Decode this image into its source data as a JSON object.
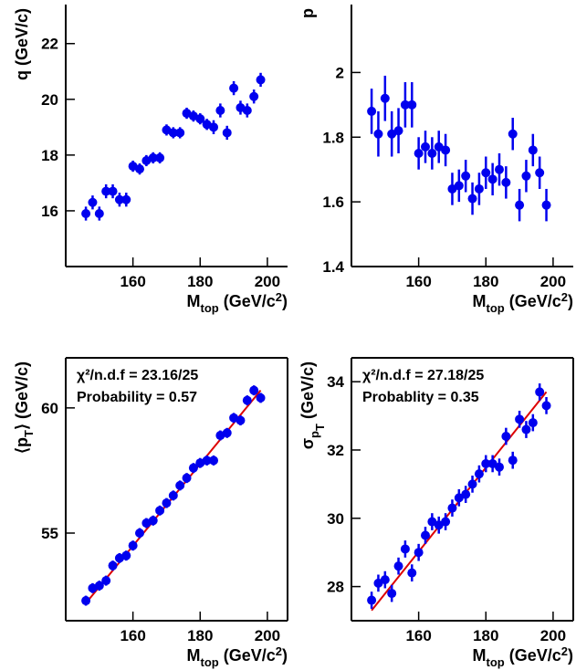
{
  "chart_data": [
    {
      "type": "scatter",
      "ylabel": [
        {
          "text": "q (GeV/c)"
        }
      ],
      "xlabel": [
        {
          "text": "M"
        },
        {
          "text": "top",
          "shift": "sub"
        },
        {
          "text": "  (GeV/c"
        },
        {
          "text": "2",
          "shift": "super"
        },
        {
          "text": ")"
        }
      ],
      "xlim": [
        140,
        206
      ],
      "xticks": [
        160,
        180,
        200
      ],
      "ylim": [
        14,
        23.4
      ],
      "yticks": [
        16,
        18,
        20,
        22
      ],
      "frame": false,
      "x": [
        146,
        148,
        150,
        152,
        154,
        156,
        158,
        160,
        162,
        164,
        166,
        168,
        170,
        172,
        174,
        176,
        178,
        180,
        182,
        184,
        186,
        188,
        190,
        192,
        194,
        196,
        198
      ],
      "series": [
        {
          "color": "#0000ee",
          "values": [
            15.9,
            16.3,
            15.9,
            16.7,
            16.7,
            16.4,
            16.4,
            17.6,
            17.5,
            17.8,
            17.9,
            17.9,
            18.9,
            18.8,
            18.8,
            19.5,
            19.4,
            19.3,
            19.1,
            19.0,
            19.6,
            18.8,
            20.4,
            19.7,
            19.6,
            20.1,
            20.7
          ],
          "errors": [
            0.25,
            0.25,
            0.25,
            0.25,
            0.25,
            0.25,
            0.25,
            0.2,
            0.2,
            0.2,
            0.2,
            0.2,
            0.2,
            0.2,
            0.2,
            0.2,
            0.2,
            0.2,
            0.2,
            0.25,
            0.25,
            0.25,
            0.25,
            0.25,
            0.25,
            0.25,
            0.25
          ]
        }
      ]
    },
    {
      "type": "scatter",
      "ylabel": [
        {
          "text": "p"
        }
      ],
      "xlabel": [
        {
          "text": "M"
        },
        {
          "text": "top",
          "shift": "sub"
        },
        {
          "text": "  (GeV/c"
        },
        {
          "text": "2",
          "shift": "super"
        },
        {
          "text": ")"
        }
      ],
      "xlim": [
        140,
        206
      ],
      "xticks": [
        160,
        180,
        200
      ],
      "ylim": [
        1.4,
        2.21
      ],
      "yticks": [
        1.4,
        1.6,
        1.8,
        2
      ],
      "frame": false,
      "x": [
        146,
        148,
        150,
        152,
        154,
        156,
        158,
        160,
        162,
        164,
        166,
        168,
        170,
        172,
        174,
        176,
        178,
        180,
        182,
        184,
        186,
        188,
        190,
        192,
        194,
        196,
        198
      ],
      "series": [
        {
          "color": "#0000ee",
          "values": [
            1.88,
            1.81,
            1.92,
            1.81,
            1.82,
            1.9,
            1.9,
            1.75,
            1.77,
            1.75,
            1.77,
            1.76,
            1.64,
            1.65,
            1.68,
            1.61,
            1.64,
            1.69,
            1.67,
            1.7,
            1.66,
            1.81,
            1.59,
            1.68,
            1.76,
            1.69,
            1.59
          ],
          "errors": [
            0.07,
            0.07,
            0.07,
            0.07,
            0.07,
            0.07,
            0.07,
            0.05,
            0.05,
            0.05,
            0.05,
            0.05,
            0.05,
            0.05,
            0.05,
            0.05,
            0.05,
            0.05,
            0.05,
            0.05,
            0.05,
            0.05,
            0.05,
            0.05,
            0.05,
            0.05,
            0.05
          ]
        }
      ]
    },
    {
      "type": "scatter",
      "ylabel": [
        {
          "text": "⟨p"
        },
        {
          "text": "T",
          "shift": "sub"
        },
        {
          "text": "⟩  (GeV/c)"
        }
      ],
      "xlabel": [
        {
          "text": "M"
        },
        {
          "text": "top",
          "shift": "sub"
        },
        {
          "text": "  (GeV/c"
        },
        {
          "text": "2",
          "shift": "super"
        },
        {
          "text": ")"
        }
      ],
      "xlim": [
        140,
        206
      ],
      "xticks": [
        160,
        180,
        200
      ],
      "ylim": [
        51.5,
        62
      ],
      "yticks": [
        55,
        60
      ],
      "frame": true,
      "annotations": [
        "χ²/n.d.f = 23.16/25",
        "Probability = 0.57"
      ],
      "x": [
        146,
        148,
        150,
        152,
        154,
        156,
        158,
        160,
        162,
        164,
        166,
        168,
        170,
        172,
        174,
        176,
        178,
        180,
        182,
        184,
        186,
        188,
        190,
        192,
        194,
        196,
        198
      ],
      "series": [
        {
          "color": "#0000ee",
          "values": [
            52.3,
            52.8,
            52.9,
            53.1,
            53.7,
            54.0,
            54.1,
            54.5,
            55.0,
            55.4,
            55.5,
            55.9,
            56.2,
            56.5,
            56.9,
            57.2,
            57.6,
            57.8,
            57.9,
            57.9,
            58.9,
            59.0,
            59.6,
            59.5,
            60.3,
            60.7,
            60.4
          ],
          "errors": [
            0.2,
            0.2,
            0.2,
            0.2,
            0.2,
            0.2,
            0.2,
            0.2,
            0.2,
            0.2,
            0.2,
            0.2,
            0.2,
            0.2,
            0.2,
            0.2,
            0.2,
            0.2,
            0.2,
            0.2,
            0.2,
            0.2,
            0.2,
            0.2,
            0.2,
            0.2,
            0.2
          ]
        }
      ],
      "fit": {
        "x": [
          146,
          198
        ],
        "values": [
          52.2,
          60.7
        ],
        "color": "#dd0000"
      }
    },
    {
      "type": "scatter",
      "ylabel": [
        {
          "text": "σ"
        },
        {
          "text": "p",
          "shift": "sub"
        },
        {
          "text": "T",
          "shift": "subsub"
        },
        {
          "text": "  (GeV/c)"
        }
      ],
      "xlabel": [
        {
          "text": "M"
        },
        {
          "text": "top",
          "shift": "sub"
        },
        {
          "text": "  (GeV/c"
        },
        {
          "text": "2",
          "shift": "super"
        },
        {
          "text": ")"
        }
      ],
      "xlim": [
        140,
        206
      ],
      "xticks": [
        160,
        180,
        200
      ],
      "ylim": [
        27,
        34.7
      ],
      "yticks": [
        28,
        30,
        32,
        34
      ],
      "frame": true,
      "annotations": [
        "χ²/n.d.f = 27.18/25",
        "Probablity = 0.35"
      ],
      "x": [
        146,
        148,
        150,
        152,
        154,
        156,
        158,
        160,
        162,
        164,
        166,
        168,
        170,
        172,
        174,
        176,
        178,
        180,
        182,
        184,
        186,
        188,
        190,
        192,
        194,
        196,
        198
      ],
      "series": [
        {
          "color": "#0000ee",
          "values": [
            27.6,
            28.1,
            28.2,
            27.8,
            28.6,
            29.1,
            28.4,
            29.0,
            29.5,
            29.9,
            29.8,
            29.9,
            30.3,
            30.6,
            30.7,
            31.0,
            31.3,
            31.6,
            31.6,
            31.5,
            32.4,
            31.7,
            32.9,
            32.6,
            32.8,
            33.7,
            33.3
          ],
          "errors": [
            0.25,
            0.25,
            0.25,
            0.25,
            0.25,
            0.25,
            0.25,
            0.25,
            0.25,
            0.25,
            0.25,
            0.25,
            0.25,
            0.25,
            0.25,
            0.25,
            0.25,
            0.25,
            0.25,
            0.25,
            0.25,
            0.25,
            0.25,
            0.25,
            0.25,
            0.25,
            0.25
          ]
        }
      ],
      "fit": {
        "x": [
          146,
          198
        ],
        "values": [
          27.3,
          33.7
        ],
        "color": "#dd0000"
      }
    }
  ]
}
